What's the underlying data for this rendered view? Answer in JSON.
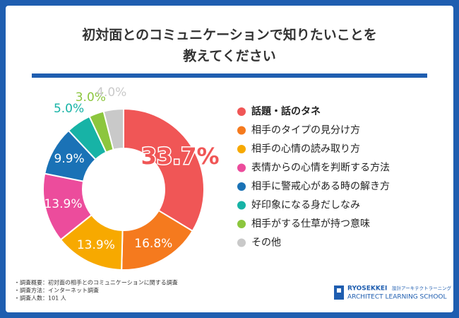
{
  "chart_data": {
    "type": "pie",
    "donut": true,
    "title": [
      "初対面とのコミュニケーションで知りたいことを",
      "教えてください"
    ],
    "categories": [
      "話題・話のタネ",
      "相手のタイプの見分け方",
      "相手の心情の読み取り方",
      "表情からの心情を判断する方法",
      "相手に警戒心がある時の解き方",
      "好印象になる身だしなみ",
      "相手がする仕草が持つ意味",
      "その他"
    ],
    "values": [
      33.7,
      16.8,
      13.9,
      13.9,
      9.9,
      5.0,
      3.0,
      4.0
    ],
    "value_labels": [
      "33.7%",
      "16.8%",
      "13.9%",
      "13.9%",
      "9.9%",
      "5.0%",
      "3.0%",
      "4.0%"
    ],
    "colors": [
      "#f05656",
      "#f57a1e",
      "#f7a900",
      "#ec4c9c",
      "#1a72b6",
      "#17b3a6",
      "#8cc63e",
      "#c9c9c9"
    ]
  },
  "notes": [
    "・調査概要：初対面の相手とのコミュニケーションに関する調査",
    "・調査方法：インターネット調査",
    "・調査人数：101 人"
  ],
  "logo": {
    "name": "RYOSEKKEI",
    "sub": "設計アーキテクトラーニング",
    "school": "ARCHITECT LEARNING SCHOOL"
  }
}
